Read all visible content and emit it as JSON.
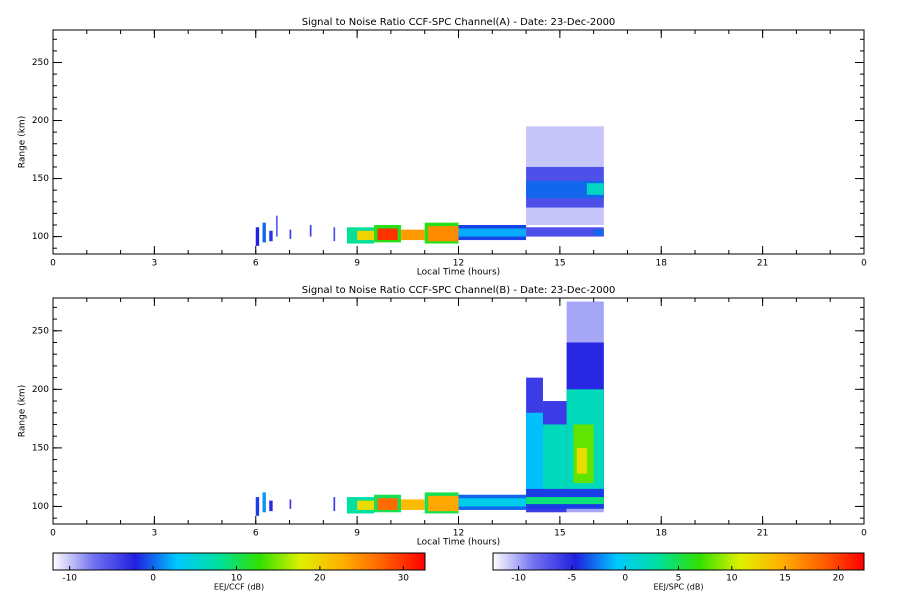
{
  "chart_data": [
    {
      "type": "heatmap",
      "title": "Signal to Noise Ratio CCF-SPC Channel(A) - Date: 23-Dec-2000",
      "x_label": "Local Time (hours)",
      "y_label": "Range (km)",
      "xlim": [
        0,
        24
      ],
      "xticks": [
        0,
        3,
        6,
        9,
        12,
        15,
        18,
        21,
        {
          "value": 24,
          "label": "0"
        }
      ],
      "ylim": [
        85,
        278
      ],
      "yticks": [
        100,
        150,
        200,
        250
      ],
      "xminor_step": 1,
      "yminor_step": 10,
      "colormap": [
        "#ffffff",
        "#7070f0",
        "#2020e0",
        "#00c8ff",
        "#00e0a0",
        "#30e000",
        "#e0f000",
        "#ffb000",
        "#ff6000",
        "#ff0000"
      ],
      "colorbar": {
        "label": "EEJ/CCF (dB)",
        "clim": [
          -12,
          32.6
        ],
        "ticks": [
          -10,
          0,
          10,
          20,
          30
        ]
      },
      "cells": [
        {
          "x": [
            6.0,
            6.1
          ],
          "y": [
            92,
            108
          ],
          "value": -2
        },
        {
          "x": [
            6.2,
            6.3
          ],
          "y": [
            95,
            112
          ],
          "value": 0
        },
        {
          "x": [
            6.4,
            6.5
          ],
          "y": [
            96,
            105
          ],
          "value": -3
        },
        {
          "x": [
            6.6,
            6.65
          ],
          "y": [
            100,
            118
          ],
          "value": -6
        },
        {
          "x": [
            7.0,
            7.05
          ],
          "y": [
            98,
            106
          ],
          "value": -4
        },
        {
          "x": [
            7.6,
            7.65
          ],
          "y": [
            100,
            110
          ],
          "value": -4
        },
        {
          "x": [
            8.3,
            8.35
          ],
          "y": [
            96,
            108
          ],
          "value": -5
        },
        {
          "x": [
            8.7,
            9.5
          ],
          "y": [
            94,
            108
          ],
          "value": 8
        },
        {
          "x": [
            9.0,
            9.5
          ],
          "y": [
            97,
            105
          ],
          "value": 20
        },
        {
          "x": [
            9.5,
            10.3
          ],
          "y": [
            95,
            110
          ],
          "value": 12
        },
        {
          "x": [
            9.6,
            10.2
          ],
          "y": [
            97,
            107
          ],
          "value": 30
        },
        {
          "x": [
            10.3,
            11.0
          ],
          "y": [
            97,
            106
          ],
          "value": 24
        },
        {
          "x": [
            11.0,
            12.0
          ],
          "y": [
            94,
            112
          ],
          "value": 12
        },
        {
          "x": [
            11.1,
            12.0
          ],
          "y": [
            96,
            109
          ],
          "value": 25
        },
        {
          "x": [
            12.0,
            14.0
          ],
          "y": [
            97,
            110
          ],
          "value": -1
        },
        {
          "x": [
            12.0,
            14.0
          ],
          "y": [
            100,
            107
          ],
          "value": 2
        },
        {
          "x": [
            14.0,
            16.3
          ],
          "y": [
            110,
            195
          ],
          "value": -10
        },
        {
          "x": [
            14.0,
            16.3
          ],
          "y": [
            125,
            160
          ],
          "value": -5
        },
        {
          "x": [
            14.0,
            16.3
          ],
          "y": [
            133,
            148
          ],
          "value": 0
        },
        {
          "x": [
            15.8,
            16.3
          ],
          "y": [
            136,
            146
          ],
          "value": 6
        },
        {
          "x": [
            14.0,
            16.3
          ],
          "y": [
            100,
            108
          ],
          "value": -5
        },
        {
          "x": [
            16.0,
            16.3
          ],
          "y": [
            101,
            106
          ],
          "value": 0
        }
      ]
    },
    {
      "type": "heatmap",
      "title": "Signal to Noise Ratio CCF-SPC Channel(B) - Date: 23-Dec-2000",
      "x_label": "Local Time (hours)",
      "y_label": "Range (km)",
      "xlim": [
        0,
        24
      ],
      "xticks": [
        0,
        3,
        6,
        9,
        12,
        15,
        18,
        21,
        {
          "value": 24,
          "label": "0"
        }
      ],
      "ylim": [
        85,
        278
      ],
      "yticks": [
        100,
        150,
        200,
        250
      ],
      "xminor_step": 1,
      "yminor_step": 10,
      "colormap": [
        "#ffffff",
        "#7070f0",
        "#2020e0",
        "#00c8ff",
        "#00e0a0",
        "#30e000",
        "#e0f000",
        "#ffb000",
        "#ff6000",
        "#ff0000"
      ],
      "colorbar": {
        "label": "EEJ/SPC (dB)",
        "clim": [
          -12.4,
          22.4
        ],
        "ticks": [
          -10,
          -5,
          0,
          5,
          10,
          15,
          20
        ]
      },
      "cells": [
        {
          "x": [
            6.0,
            6.1
          ],
          "y": [
            92,
            108
          ],
          "value": -4
        },
        {
          "x": [
            6.2,
            6.3
          ],
          "y": [
            95,
            112
          ],
          "value": -2
        },
        {
          "x": [
            6.4,
            6.5
          ],
          "y": [
            96,
            105
          ],
          "value": -5
        },
        {
          "x": [
            7.0,
            7.05
          ],
          "y": [
            98,
            106
          ],
          "value": -6
        },
        {
          "x": [
            8.3,
            8.35
          ],
          "y": [
            96,
            108
          ],
          "value": -6
        },
        {
          "x": [
            8.7,
            9.5
          ],
          "y": [
            94,
            108
          ],
          "value": 3
        },
        {
          "x": [
            9.0,
            9.5
          ],
          "y": [
            97,
            105
          ],
          "value": 12
        },
        {
          "x": [
            9.5,
            10.3
          ],
          "y": [
            95,
            110
          ],
          "value": 5
        },
        {
          "x": [
            9.6,
            10.2
          ],
          "y": [
            97,
            107
          ],
          "value": 18
        },
        {
          "x": [
            10.3,
            11.0
          ],
          "y": [
            97,
            106
          ],
          "value": 14
        },
        {
          "x": [
            11.0,
            12.0
          ],
          "y": [
            94,
            112
          ],
          "value": 5
        },
        {
          "x": [
            11.1,
            12.0
          ],
          "y": [
            96,
            109
          ],
          "value": 15
        },
        {
          "x": [
            12.0,
            14.0
          ],
          "y": [
            97,
            110
          ],
          "value": -3
        },
        {
          "x": [
            12.0,
            14.0
          ],
          "y": [
            100,
            107
          ],
          "value": 0
        },
        {
          "x": [
            14.0,
            14.5
          ],
          "y": [
            95,
            210
          ],
          "value": -6
        },
        {
          "x": [
            14.0,
            14.5
          ],
          "y": [
            110,
            180
          ],
          "value": -1
        },
        {
          "x": [
            14.5,
            15.2
          ],
          "y": [
            95,
            190
          ],
          "value": -6
        },
        {
          "x": [
            14.5,
            15.2
          ],
          "y": [
            110,
            170
          ],
          "value": 2
        },
        {
          "x": [
            15.2,
            16.3
          ],
          "y": [
            95,
            275
          ],
          "value": -10
        },
        {
          "x": [
            15.2,
            16.3
          ],
          "y": [
            100,
            240
          ],
          "value": -5
        },
        {
          "x": [
            15.2,
            16.3
          ],
          "y": [
            110,
            200
          ],
          "value": 2
        },
        {
          "x": [
            15.4,
            16.0
          ],
          "y": [
            120,
            170
          ],
          "value": 8
        },
        {
          "x": [
            15.5,
            15.8
          ],
          "y": [
            128,
            150
          ],
          "value": 12
        },
        {
          "x": [
            14.0,
            16.3
          ],
          "y": [
            98,
            115
          ],
          "value": -4
        },
        {
          "x": [
            14.0,
            16.3
          ],
          "y": [
            102,
            108
          ],
          "value": 4
        }
      ]
    }
  ]
}
